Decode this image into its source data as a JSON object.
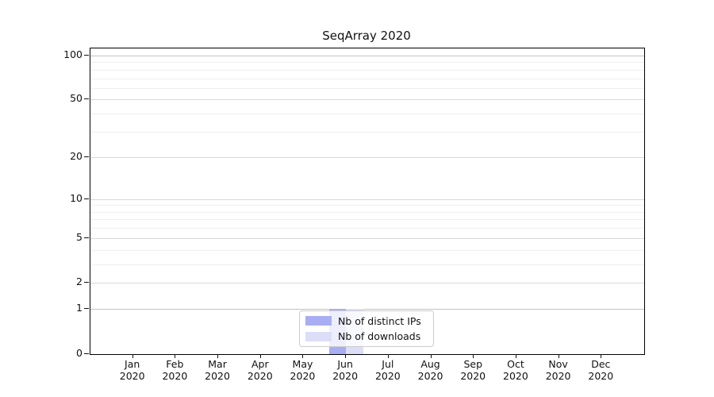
{
  "chart_data": {
    "type": "bar",
    "title": "SeqArray 2020",
    "categories": [
      "Jan",
      "Feb",
      "Mar",
      "Apr",
      "May",
      "Jun",
      "Jul",
      "Aug",
      "Sep",
      "Oct",
      "Nov",
      "Dec"
    ],
    "year_label": "2020",
    "series": [
      {
        "name": "Nb of distinct IPs",
        "color": "#a9aef3",
        "values": [
          0,
          0,
          0,
          0,
          0,
          1,
          0,
          0,
          0,
          0,
          0,
          0
        ]
      },
      {
        "name": "Nb of downloads",
        "color": "#dcdef8",
        "values": [
          0,
          0,
          0,
          0,
          0,
          1,
          0,
          0,
          0,
          0,
          0,
          0
        ]
      }
    ],
    "yscale": "log1p",
    "ylim": [
      0,
      112
    ],
    "yticks": [
      0,
      1,
      2,
      5,
      10,
      20,
      50,
      100
    ],
    "yticks_minor": [
      3,
      4,
      6,
      7,
      8,
      9,
      30,
      40,
      60,
      70,
      80,
      90
    ],
    "grid": "horizontal",
    "legend_position": "bottom-center",
    "colors": {
      "grid_major": "#d9d9d9",
      "grid_emphasis": "#c3c3c3",
      "grid_minor": "#efefef",
      "axis": "#000000",
      "legend_border": "#cccccc"
    }
  }
}
